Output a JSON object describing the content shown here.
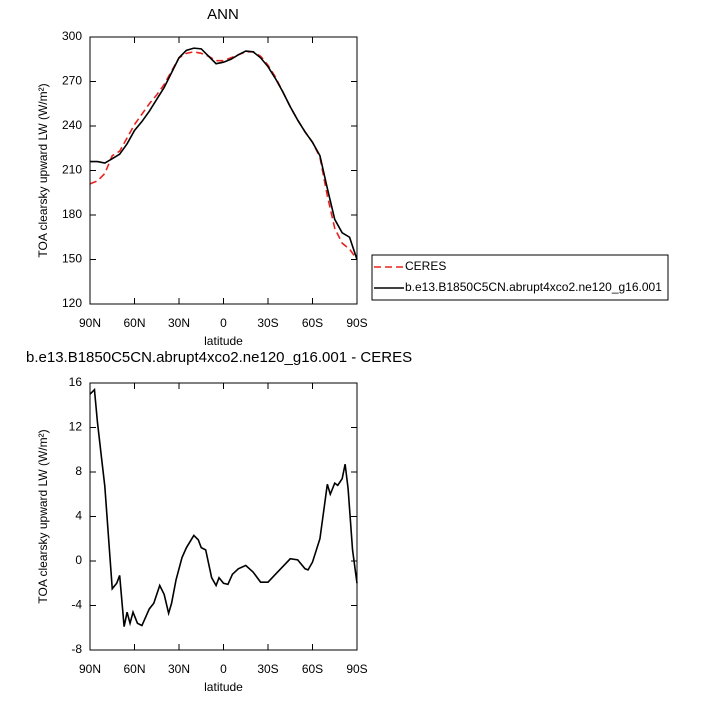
{
  "chart_data": [
    {
      "type": "line",
      "title": "ANN",
      "xlabel": "latitude",
      "ylabel": "TOA clearsky upward LW (W/m²)",
      "x": [
        90,
        85,
        80,
        75,
        70,
        65,
        60,
        55,
        50,
        45,
        40,
        35,
        30,
        25,
        20,
        15,
        10,
        5,
        0,
        -5,
        -10,
        -15,
        -20,
        -25,
        -30,
        -35,
        -40,
        -45,
        -50,
        -55,
        -60,
        -65,
        -70,
        -75,
        -80,
        -85,
        -90
      ],
      "series": [
        {
          "name": "CERES",
          "color": "#e8231e",
          "linestyle": "dashed",
          "values": [
            201,
            203,
            208,
            220,
            223,
            232,
            241,
            248,
            255,
            261,
            268,
            277,
            286,
            289,
            290,
            289,
            287,
            284,
            284,
            286,
            288,
            290,
            290,
            287,
            281,
            273,
            263,
            253,
            244,
            236,
            229,
            219,
            193,
            171,
            161,
            157,
            150
          ]
        },
        {
          "name": "b.e13.B1850C5CN.abrupt4xco2.ne120_g16.001",
          "color": "#000000",
          "linestyle": "solid",
          "values": [
            216,
            216,
            215,
            218,
            221,
            228,
            237,
            243,
            250,
            258,
            266,
            276,
            286,
            291,
            292.5,
            292,
            287,
            282,
            283,
            285,
            288,
            290.5,
            290,
            286,
            280,
            272,
            263,
            253,
            244,
            236,
            229,
            220,
            198,
            177,
            168,
            165,
            150
          ]
        }
      ],
      "xlim": [
        90,
        -90
      ],
      "xticks": [
        {
          "value": 90,
          "label": "90N"
        },
        {
          "value": 60,
          "label": "60N"
        },
        {
          "value": 30,
          "label": "30N"
        },
        0,
        {
          "value": -30,
          "label": "30S"
        },
        {
          "value": -60,
          "label": "60S"
        },
        {
          "value": -90,
          "label": "90S"
        }
      ],
      "ylim": [
        120,
        300
      ],
      "yticks": [
        120,
        150,
        180,
        210,
        240,
        270,
        300
      ],
      "legend": "right"
    },
    {
      "type": "line",
      "title": "b.e13.B1850C5CN.abrupt4xco2.ne120_g16.001 - CERES",
      "xlabel": "latitude",
      "ylabel": "TOA clearsky upward LW (W/m²)",
      "x": [
        90,
        87,
        85,
        82,
        80,
        75,
        72,
        70,
        67,
        65,
        63,
        61,
        58,
        55,
        50,
        47,
        43,
        40,
        37,
        35,
        32,
        28,
        25,
        20,
        17,
        15,
        12,
        8,
        5,
        3,
        0,
        -3,
        -6,
        -10,
        -15,
        -20,
        -25,
        -30,
        -35,
        -40,
        -45,
        -50,
        -55,
        -57,
        -60,
        -65,
        -70,
        -72,
        -75,
        -77,
        -80,
        -82,
        -84,
        -87,
        -90
      ],
      "series": [
        {
          "color": "#000000",
          "linestyle": "solid",
          "values": [
            15,
            15.4,
            12.5,
            9,
            6.7,
            -2.5,
            -2,
            -1.3,
            -5.9,
            -4.6,
            -5.6,
            -4.6,
            -5.6,
            -5.8,
            -4.3,
            -3.8,
            -2.2,
            -3,
            -4.7,
            -3.8,
            -1.7,
            0.3,
            1.2,
            2.3,
            1.9,
            1.2,
            1,
            -1.5,
            -2.2,
            -1.5,
            -2,
            -2.1,
            -1.2,
            -0.7,
            -0.4,
            -1,
            -1.9,
            -1.9,
            -1.2,
            -0.5,
            0.2,
            0.1,
            -0.7,
            -0.8,
            -0.1,
            2,
            6.9,
            6,
            7,
            6.8,
            7.4,
            8.7,
            6.5,
            1,
            -2
          ]
        }
      ],
      "xlim": [
        90,
        -90
      ],
      "xticks": [
        {
          "value": 90,
          "label": "90N"
        },
        {
          "value": 60,
          "label": "60N"
        },
        {
          "value": 30,
          "label": "30N"
        },
        0,
        {
          "value": -30,
          "label": "30S"
        },
        {
          "value": -60,
          "label": "60S"
        },
        {
          "value": -90,
          "label": "90S"
        }
      ],
      "ylim": [
        -8,
        16
      ],
      "yticks": [
        -8,
        -4,
        0,
        4,
        8,
        12,
        16
      ]
    }
  ]
}
